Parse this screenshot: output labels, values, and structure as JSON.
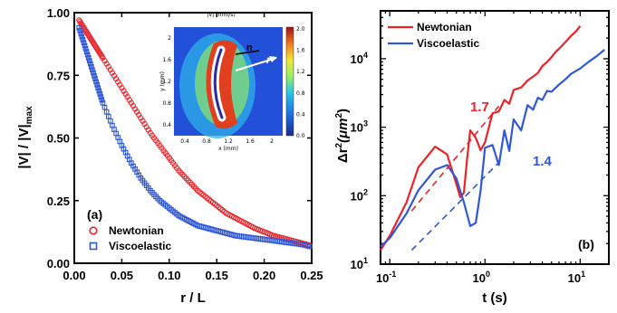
{
  "colors": {
    "newtonian": "#e8232a",
    "viscoelastic": "#2f57d8",
    "axis": "#000000"
  },
  "chart_data": [
    {
      "type": "scatter",
      "panel_label": "(a)",
      "xlabel": "r / L",
      "ylabel": "|V| / |V|max",
      "ylabel_main": "|V| / |V|",
      "ylabel_sub": "max",
      "xlim": [
        0,
        0.25
      ],
      "ylim": [
        0,
        1.0
      ],
      "xticks": [
        "0.00",
        "0.05",
        "0.10",
        "0.15",
        "0.20",
        "0.25"
      ],
      "yticks": [
        "0.00",
        "0.25",
        "0.50",
        "0.75",
        "1.00"
      ],
      "legend_position": "bottom-left",
      "series": [
        {
          "name": "Newtonian",
          "marker": "circle",
          "x": [
            0.005,
            0.01,
            0.015,
            0.02,
            0.025,
            0.03,
            0.04,
            0.05,
            0.06,
            0.07,
            0.08,
            0.09,
            0.1,
            0.11,
            0.12,
            0.13,
            0.14,
            0.15,
            0.16,
            0.17,
            0.18,
            0.19,
            0.2,
            0.21,
            0.22,
            0.23,
            0.24,
            0.25
          ],
          "y": [
            0.97,
            0.94,
            0.91,
            0.88,
            0.85,
            0.82,
            0.76,
            0.7,
            0.64,
            0.58,
            0.52,
            0.47,
            0.42,
            0.37,
            0.33,
            0.29,
            0.26,
            0.23,
            0.2,
            0.18,
            0.16,
            0.14,
            0.125,
            0.11,
            0.1,
            0.09,
            0.08,
            0.07
          ]
        },
        {
          "name": "Viscoelastic",
          "marker": "square",
          "x": [
            0.005,
            0.01,
            0.015,
            0.02,
            0.025,
            0.03,
            0.04,
            0.05,
            0.06,
            0.07,
            0.08,
            0.09,
            0.1,
            0.11,
            0.12,
            0.13,
            0.14,
            0.15,
            0.16,
            0.17,
            0.18,
            0.19,
            0.2,
            0.21,
            0.22,
            0.23,
            0.24,
            0.25
          ],
          "y": [
            0.94,
            0.88,
            0.82,
            0.76,
            0.7,
            0.64,
            0.55,
            0.47,
            0.4,
            0.34,
            0.29,
            0.25,
            0.22,
            0.19,
            0.17,
            0.15,
            0.14,
            0.13,
            0.12,
            0.11,
            0.105,
            0.1,
            0.095,
            0.09,
            0.085,
            0.08,
            0.075,
            0.065
          ]
        }
      ],
      "inset": {
        "title": "|V| (mm/s)",
        "xlabel": "x (mm)",
        "ylabel": "y (mm)",
        "xticks": [
          "0.4",
          "0.8",
          "1.2",
          "1.6",
          "2"
        ],
        "yticks": [
          "0.4",
          "0.8",
          "1.2",
          "1.6",
          "2"
        ],
        "colorbar_ticks": [
          "2.0",
          "1.6",
          "1.2",
          "0.8",
          "0.4",
          "0.0"
        ],
        "annotations": [
          "n",
          "r"
        ]
      }
    },
    {
      "type": "line",
      "panel_label": "(b)",
      "xlabel": "t (s)",
      "ylabel": "Δr²(μm²)",
      "ylabel_main": "Δr",
      "ylabel_sup": "2",
      "ylabel_unit": "(μm",
      "xscale": "log",
      "yscale": "log",
      "xlim": [
        0.08,
        20
      ],
      "ylim": [
        10,
        50000
      ],
      "xticks": [
        "10-1",
        "100",
        "101"
      ],
      "yticks": [
        "101",
        "102",
        "103",
        "104"
      ],
      "legend_position": "top-left",
      "annotations": [
        "1.7",
        "1.4"
      ],
      "series": [
        {
          "name": "Newtonian",
          "x": [
            0.08,
            0.1,
            0.15,
            0.2,
            0.3,
            0.4,
            0.5,
            0.55,
            0.6,
            0.65,
            0.7,
            0.8,
            0.9,
            1.0,
            1.2,
            1.4,
            1.6,
            1.8,
            2.0,
            2.4,
            2.8,
            3.2,
            3.6,
            4.0,
            4.5,
            5.0,
            5.5,
            6.0,
            7.0,
            8.0,
            9.0,
            10.0
          ],
          "y": [
            16,
            26,
            80,
            260,
            520,
            400,
            150,
            95,
            110,
            350,
            900,
            700,
            460,
            600,
            1600,
            1700,
            2500,
            2200,
            3500,
            3800,
            4800,
            5500,
            6200,
            7800,
            9000,
            10500,
            12500,
            14000,
            17500,
            21500,
            25000,
            30000
          ]
        },
        {
          "name": "Viscoelastic",
          "x": [
            0.08,
            0.1,
            0.15,
            0.2,
            0.3,
            0.4,
            0.5,
            0.6,
            0.7,
            0.8,
            0.9,
            1.0,
            1.2,
            1.4,
            1.6,
            1.8,
            2.0,
            2.4,
            2.8,
            3.2,
            3.6,
            4.0,
            4.5,
            5.0,
            6.0,
            7.0,
            8.0,
            10.0,
            12.0,
            15.0,
            18.0
          ],
          "y": [
            18,
            24,
            55,
            120,
            240,
            280,
            180,
            80,
            36,
            40,
            120,
            500,
            550,
            280,
            900,
            450,
            1300,
            900,
            2100,
            1800,
            2700,
            2500,
            3400,
            3300,
            4200,
            5000,
            6000,
            7200,
            8800,
            11000,
            13500
          ]
        },
        {
          "name": "",
          "style": "dashed",
          "color": "#e8232a",
          "x": [
            0.17,
            1.4
          ],
          "y": [
            60,
            2040
          ]
        },
        {
          "name": "",
          "style": "dashed",
          "color": "#2f57d8",
          "x": [
            0.17,
            1.5
          ],
          "y": [
            16,
            337
          ]
        }
      ]
    }
  ]
}
